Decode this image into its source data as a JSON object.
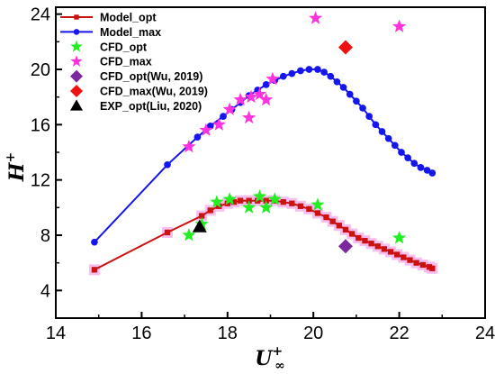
{
  "chart_data": {
    "type": "scatter",
    "title": "",
    "xlabel": {
      "base": "U",
      "sub": "∞",
      "sup": "+"
    },
    "ylabel": {
      "base": "H",
      "sup": "+"
    },
    "xlim": [
      14,
      24
    ],
    "ylim": [
      2,
      24.5
    ],
    "xticks": [
      "14",
      "16",
      "18",
      "20",
      "22",
      "24"
    ],
    "yticks": [
      "4",
      "8",
      "12",
      "16",
      "20",
      "24"
    ],
    "grid": false,
    "legend_position": "top-left",
    "series": [
      {
        "name": "Model_opt",
        "kind": "line-marker",
        "marker": "square",
        "color": "#cc1111",
        "halo": "#f5b8ec",
        "x": [
          14.9,
          16.6,
          17.4,
          17.6,
          17.8,
          18.0,
          18.15,
          18.3,
          18.5,
          18.7,
          18.9,
          19.1,
          19.3,
          19.5,
          19.7,
          19.9,
          20.1,
          20.3,
          20.45,
          20.6,
          20.75,
          20.9,
          21.05,
          21.2,
          21.35,
          21.5,
          21.65,
          21.8,
          21.95,
          22.1,
          22.25,
          22.4,
          22.55,
          22.7,
          22.77
        ],
        "y": [
          5.5,
          8.2,
          9.4,
          9.8,
          10.1,
          10.3,
          10.4,
          10.5,
          10.5,
          10.5,
          10.5,
          10.5,
          10.4,
          10.3,
          10.1,
          9.9,
          9.6,
          9.3,
          9.0,
          8.7,
          8.4,
          8.1,
          7.8,
          7.6,
          7.4,
          7.2,
          7.0,
          6.8,
          6.6,
          6.4,
          6.2,
          6.0,
          5.85,
          5.7,
          5.6
        ]
      },
      {
        "name": "Model_max",
        "kind": "line-marker",
        "marker": "circle",
        "color": "#1515ee",
        "x": [
          14.9,
          16.6,
          17.3,
          17.6,
          17.9,
          18.1,
          18.3,
          18.5,
          18.7,
          18.9,
          19.1,
          19.3,
          19.5,
          19.7,
          19.9,
          20.1,
          20.25,
          20.4,
          20.55,
          20.7,
          20.85,
          21.0,
          21.15,
          21.3,
          21.45,
          21.6,
          21.75,
          21.9,
          22.05,
          22.2,
          22.35,
          22.5,
          22.65,
          22.77
        ],
        "y": [
          7.5,
          13.1,
          15.1,
          15.9,
          16.6,
          17.1,
          17.6,
          18.1,
          18.5,
          18.9,
          19.2,
          19.5,
          19.7,
          19.9,
          20.0,
          20.0,
          19.8,
          19.5,
          19.1,
          18.7,
          18.2,
          17.7,
          17.2,
          16.6,
          16.0,
          15.5,
          15.0,
          14.5,
          14.0,
          13.6,
          13.2,
          12.9,
          12.7,
          12.5
        ]
      },
      {
        "name": "CFD_opt",
        "kind": "marker",
        "marker": "star",
        "color": "#22ee22",
        "x": [
          17.1,
          17.4,
          17.75,
          18.05,
          18.5,
          18.75,
          18.9,
          19.1,
          20.1,
          22.0
        ],
        "y": [
          8.0,
          8.8,
          10.4,
          10.6,
          10.0,
          10.8,
          10.0,
          10.6,
          10.2,
          7.8
        ]
      },
      {
        "name": "CFD_max",
        "kind": "marker",
        "marker": "star",
        "color": "#ff33dd",
        "x": [
          17.1,
          17.5,
          17.8,
          18.05,
          18.3,
          18.55,
          18.75,
          18.9,
          19.05,
          18.5,
          20.05,
          22.0
        ],
        "y": [
          14.4,
          15.6,
          16.0,
          17.1,
          17.8,
          18.0,
          18.2,
          17.8,
          19.3,
          16.5,
          23.7,
          23.1
        ]
      },
      {
        "name": "CFD_opt(Wu, 2019)",
        "kind": "marker",
        "marker": "diamond",
        "color": "#7a2a9e",
        "x": [
          20.75
        ],
        "y": [
          7.2
        ]
      },
      {
        "name": "CFD_max(Wu, 2019)",
        "kind": "marker",
        "marker": "diamond",
        "color": "#ee1111",
        "x": [
          20.75
        ],
        "y": [
          21.6
        ]
      },
      {
        "name": "EXP_opt(Liu, 2020)",
        "kind": "marker",
        "marker": "triangle",
        "color": "#000000",
        "x": [
          17.35
        ],
        "y": [
          8.6
        ]
      }
    ]
  }
}
